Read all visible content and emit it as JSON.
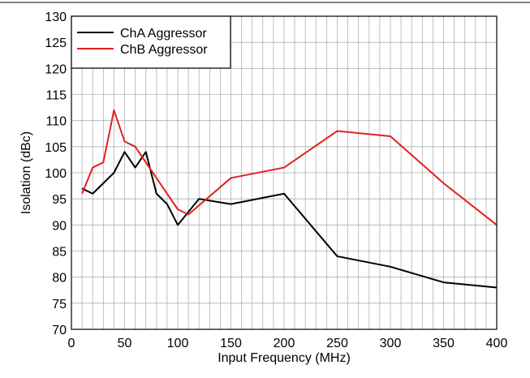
{
  "chart_data": {
    "type": "line",
    "xlabel": "Input Frequency (MHz)",
    "ylabel": "Isolation (dBc)",
    "xlim": [
      0,
      400
    ],
    "ylim": [
      70,
      130
    ],
    "xticks": [
      0,
      50,
      100,
      150,
      200,
      250,
      300,
      350,
      400
    ],
    "yticks": [
      70,
      75,
      80,
      85,
      90,
      95,
      100,
      105,
      110,
      115,
      120,
      125,
      130
    ],
    "x_minor_step": 10,
    "grid": true,
    "legend_position": "top-left",
    "series": [
      {
        "name": "ChA Aggressor",
        "color": "#000000",
        "x": [
          10,
          20,
          40,
          50,
          60,
          70,
          80,
          90,
          100,
          120,
          150,
          200,
          250,
          300,
          350,
          400
        ],
        "y": [
          97,
          96,
          100,
          104,
          101,
          104,
          96,
          94,
          90,
          95,
          94,
          96,
          84,
          82,
          79,
          78
        ]
      },
      {
        "name": "ChB Aggressor",
        "color": "#e02020",
        "x": [
          10,
          20,
          30,
          40,
          50,
          60,
          70,
          80,
          100,
          110,
          150,
          200,
          250,
          300,
          350,
          400
        ],
        "y": [
          96,
          101,
          102,
          112,
          106,
          105,
          102,
          99,
          93,
          92,
          99,
          101,
          108,
          107,
          98,
          90
        ]
      }
    ]
  }
}
